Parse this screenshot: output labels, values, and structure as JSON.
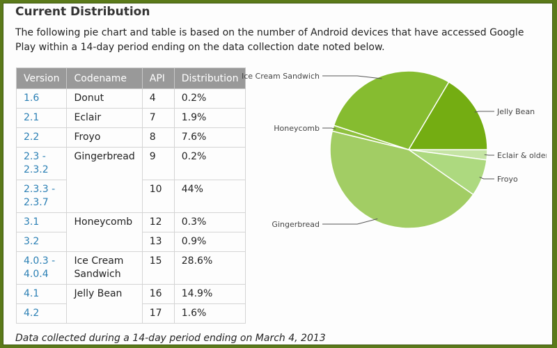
{
  "page": {
    "title": "Current Distribution",
    "intro": "The following pie chart and table is based on the number of Android devices that have accessed Google Play within a 14-day period ending on the data collection date noted below.",
    "footer": "Data collected during a 14-day period ending on March 4, 2013"
  },
  "table": {
    "headers": [
      "Version",
      "Codename",
      "API",
      "Distribution"
    ],
    "rows": [
      {
        "version": "1.6",
        "codename": "Donut",
        "api": "4",
        "pct": "0.2%"
      },
      {
        "version": "2.1",
        "codename": "Eclair",
        "api": "7",
        "pct": "1.9%"
      },
      {
        "version": "2.2",
        "codename": "Froyo",
        "api": "8",
        "pct": "7.6%"
      },
      {
        "version": "2.3 - 2.3.2",
        "codename": "Gingerbread",
        "api": "9",
        "pct": "0.2%"
      },
      {
        "version": "2.3.3 - 2.3.7",
        "codename": "",
        "api": "10",
        "pct": "44%"
      },
      {
        "version": "3.1",
        "codename": "Honeycomb",
        "api": "12",
        "pct": "0.3%"
      },
      {
        "version": "3.2",
        "codename": "",
        "api": "13",
        "pct": "0.9%"
      },
      {
        "version": "4.0.3 - 4.0.4",
        "codename": "Ice Cream Sandwich",
        "api": "15",
        "pct": "28.6%"
      },
      {
        "version": "4.1",
        "codename": "Jelly Bean",
        "api": "16",
        "pct": "14.9%"
      },
      {
        "version": "4.2",
        "codename": "",
        "api": "17",
        "pct": "1.6%"
      }
    ]
  },
  "chart_data": {
    "type": "pie",
    "categories": [
      "Eclair & older",
      "Froyo",
      "Gingerbread",
      "Honeycomb",
      "Ice Cream Sandwich",
      "Jelly Bean"
    ],
    "values": [
      2.1,
      7.6,
      44.2,
      1.2,
      28.6,
      16.5
    ],
    "colors": [
      "#c5e4a4",
      "#add97f",
      "#a2cd64",
      "#8fc13f",
      "#86bc30",
      "#74ad12"
    ]
  }
}
